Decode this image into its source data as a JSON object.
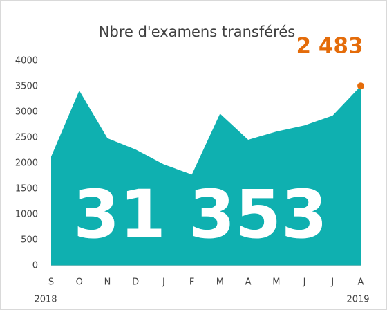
{
  "chart_data": {
    "type": "area",
    "title": "Nbre d'examens transférés",
    "categories": [
      "S",
      "O",
      "N",
      "D",
      "J",
      "F",
      "M",
      "A",
      "M",
      "J",
      "J",
      "A"
    ],
    "year_labels": [
      "2018",
      "2019"
    ],
    "values": [
      2130,
      3420,
      2490,
      2270,
      1980,
      1780,
      2970,
      2460,
      2620,
      2740,
      2930,
      3510
    ],
    "color": "#0fb0b0",
    "ylim": [
      0,
      4000
    ],
    "yticks": [
      0,
      500,
      1000,
      1500,
      2000,
      2500,
      3000,
      3500,
      4000
    ],
    "annotations": [
      "2 483",
      "31 353"
    ],
    "annotation_color": "#e46c0a",
    "grid": false
  }
}
